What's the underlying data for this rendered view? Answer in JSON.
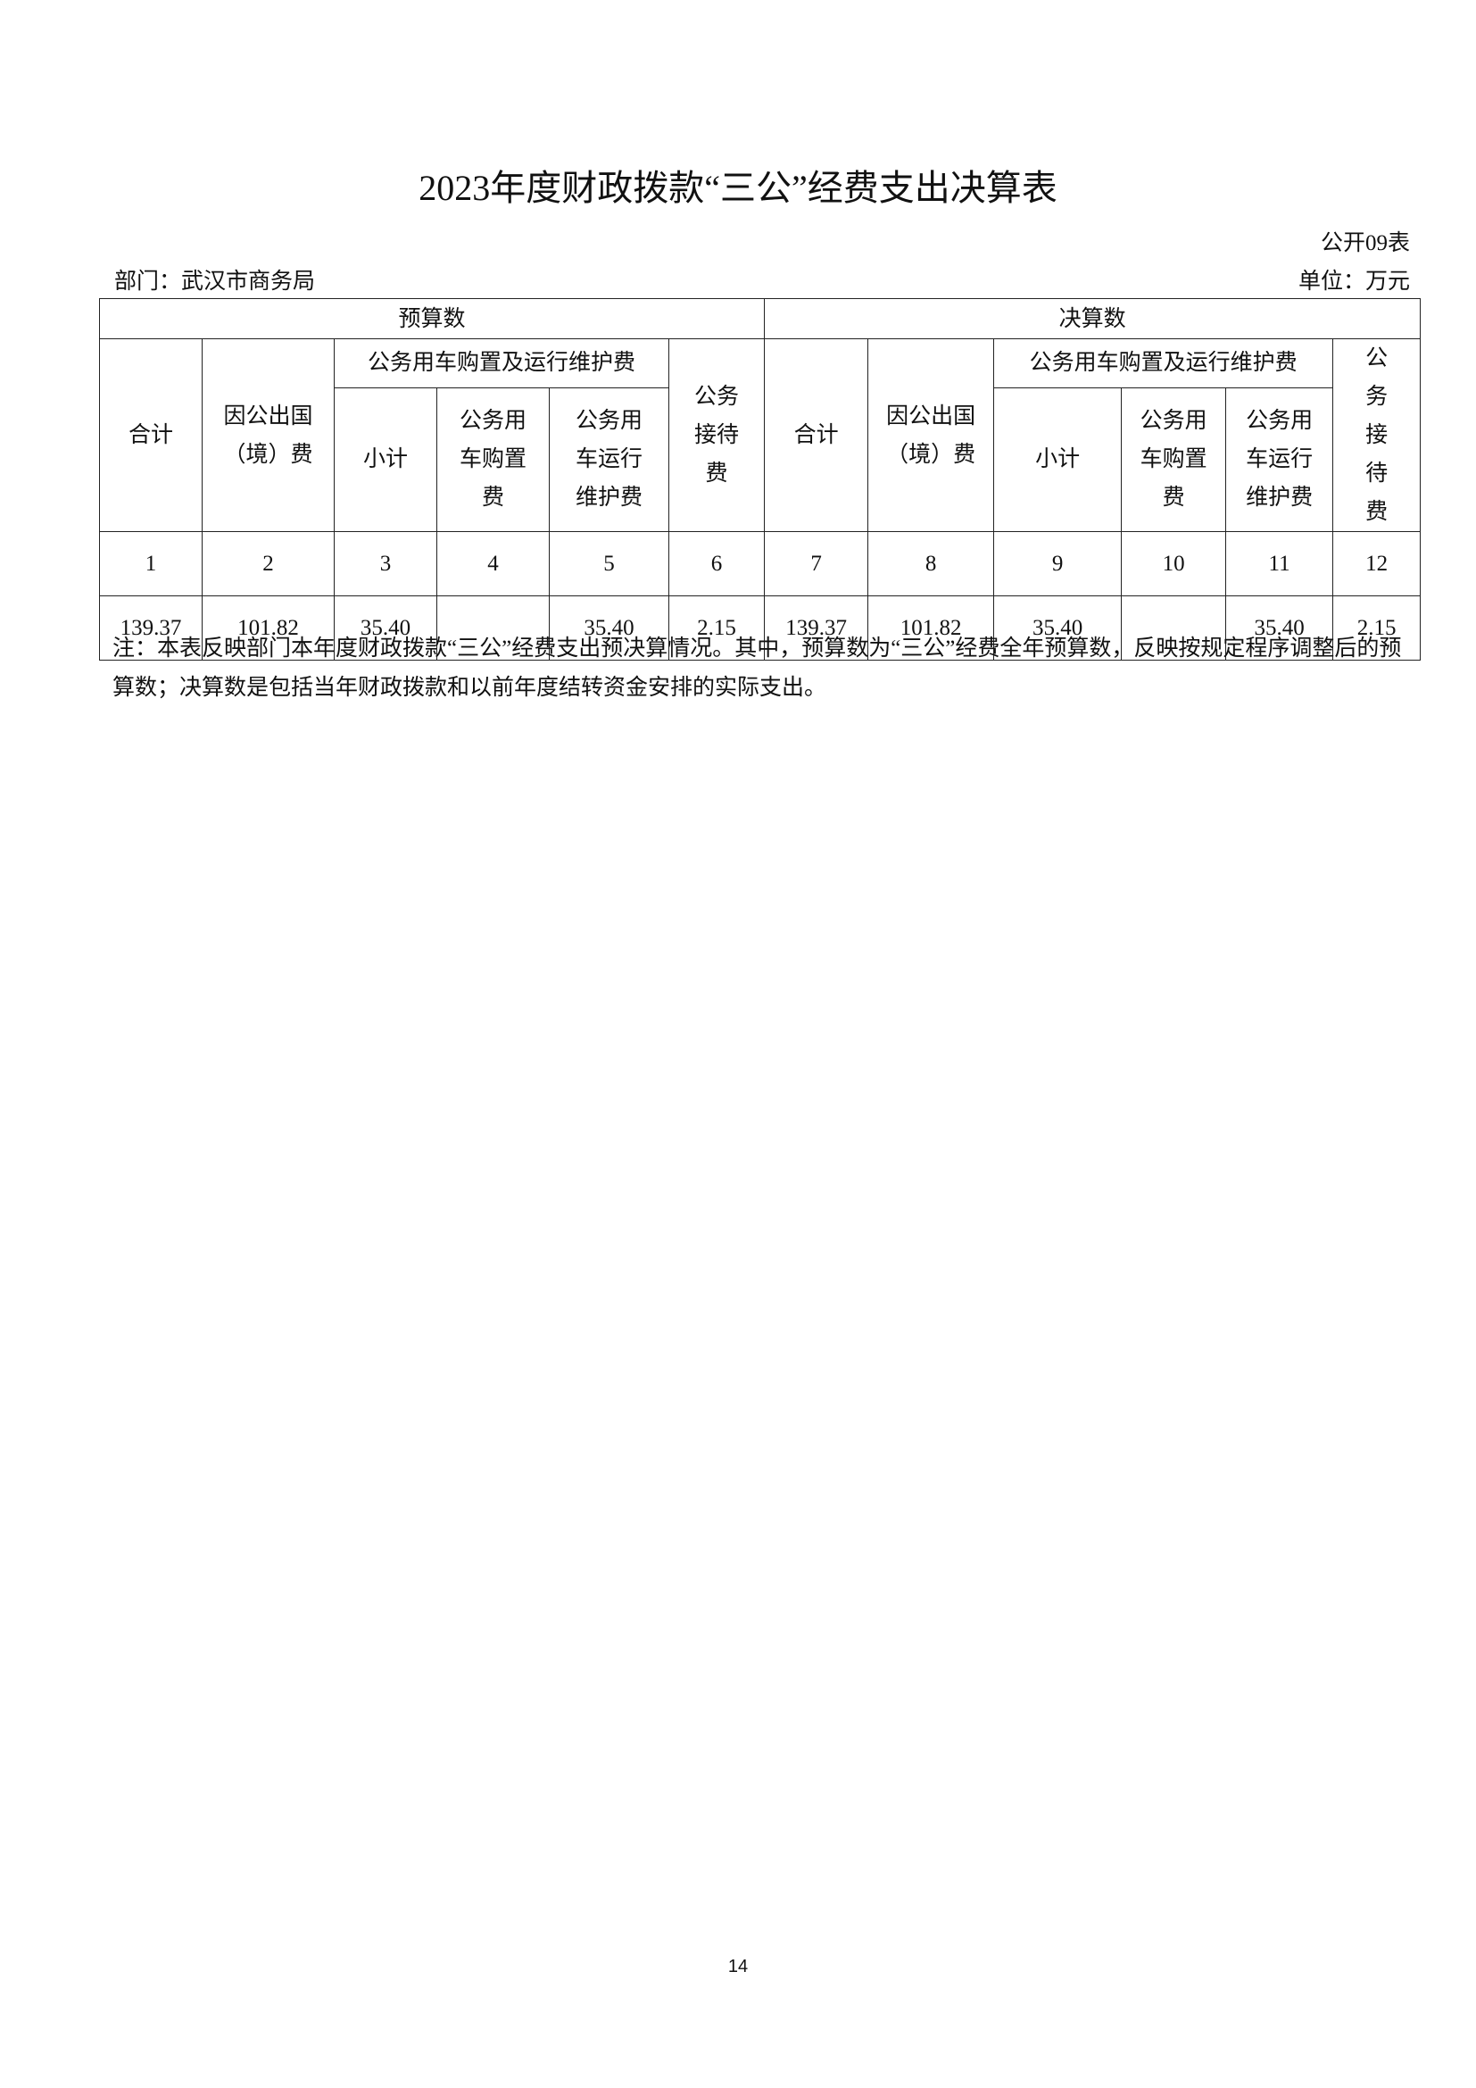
{
  "title": "2023年度财政拨款“三公”经费支出决算表",
  "form_no": "公开09表",
  "department": "部门：武汉市商务局",
  "unit": "单位：万元",
  "table": {
    "group_headers": [
      "预算数",
      "决算数"
    ],
    "budget": {
      "total": "合计",
      "abroad": "因公出国（境）费",
      "vehicle_group": "公务用车购置及运行维护费",
      "subtotal": "小计",
      "purchase": "公务用车购置费",
      "operation": "公务用车运行维护费",
      "reception": "公务接待费"
    },
    "final": {
      "total": "合计",
      "abroad": "因公出国（境）费",
      "vehicle_group": "公务用车购置及运行维护费",
      "subtotal": "小计",
      "purchase": "公务用车购置费",
      "operation": "公务用车运行维护费",
      "reception": "公务接待费"
    },
    "column_numbers": [
      "1",
      "2",
      "3",
      "4",
      "5",
      "6",
      "7",
      "8",
      "9",
      "10",
      "11",
      "12"
    ],
    "values": [
      "139.37",
      "101.82",
      "35.40",
      "",
      "35.40",
      "2.15",
      "139.37",
      "101.82",
      "35.40",
      "",
      "35.40",
      "2.15"
    ]
  },
  "note": "注：本表反映部门本年度财政拨款“三公”经费支出预决算情况。其中，预算数为“三公”经费全年预算数，反映按规定程序调整后的预算数；决算数是包括当年财政拨款和以前年度结转资金安排的实际支出。",
  "page_number": "14"
}
